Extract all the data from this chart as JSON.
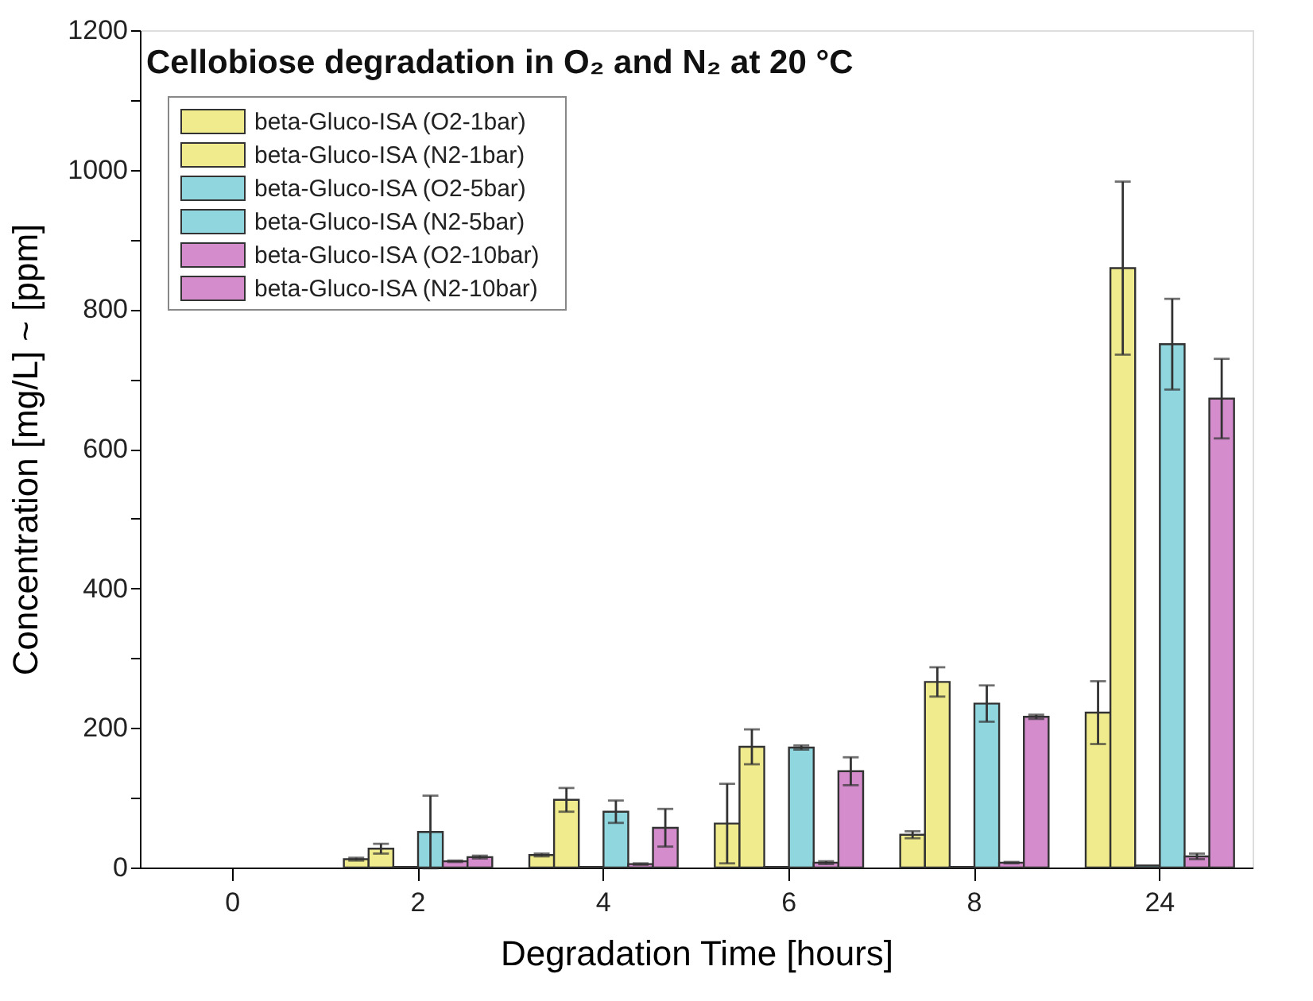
{
  "chart_data": {
    "type": "bar",
    "title": "Cellobiose degradation in O₂ and N₂ at 20 °C",
    "xlabel": "Degradation Time [hours]",
    "ylabel": "Concentration [mg/L] ~ [ppm]",
    "categories": [
      "0",
      "2",
      "4",
      "6",
      "8",
      "24"
    ],
    "series": [
      {
        "name": "beta-Gluco-ISA (O2-1bar)",
        "color": "#f0eb8c",
        "values": [
          null,
          12,
          18,
          63,
          47,
          222
        ],
        "errors": [
          null,
          2,
          2,
          57,
          5,
          45
        ]
      },
      {
        "name": "beta-Gluco-ISA (N2-1bar)",
        "color": "#f0eb8c",
        "values": [
          null,
          27,
          97,
          173,
          266,
          859
        ],
        "errors": [
          null,
          7,
          17,
          25,
          21,
          124
        ]
      },
      {
        "name": "beta-Gluco-ISA (O2-5bar)",
        "color": "#8fd6de",
        "values": [
          null,
          1,
          1,
          1,
          1,
          3
        ],
        "errors": [
          null,
          null,
          null,
          null,
          null,
          null
        ]
      },
      {
        "name": "beta-Gluco-ISA (N2-5bar)",
        "color": "#8fd6de",
        "values": [
          null,
          51,
          80,
          172,
          235,
          750
        ],
        "errors": [
          null,
          52,
          16,
          3,
          26,
          65
        ]
      },
      {
        "name": "beta-Gluco-ISA (O2-10bar)",
        "color": "#d48ccd",
        "values": [
          null,
          9,
          5,
          7,
          7,
          16
        ],
        "errors": [
          null,
          1,
          1,
          2,
          1,
          4
        ]
      },
      {
        "name": "beta-Gluco-ISA (N2-10bar)",
        "color": "#d48ccd",
        "values": [
          null,
          15,
          57,
          138,
          216,
          672
        ],
        "errors": [
          null,
          2,
          27,
          20,
          3,
          57
        ]
      }
    ],
    "ylim": [
      0,
      1200
    ],
    "yticks": [
      0,
      {
        "value": 100,
        "label": null
      },
      200,
      {
        "value": 300,
        "label": null
      },
      400,
      {
        "value": 500,
        "label": null
      },
      600,
      {
        "value": 700,
        "label": null
      },
      800,
      {
        "value": 900,
        "label": null
      },
      1000,
      {
        "value": 1100,
        "label": null
      },
      1200
    ],
    "legend": "top left",
    "grid": false
  }
}
